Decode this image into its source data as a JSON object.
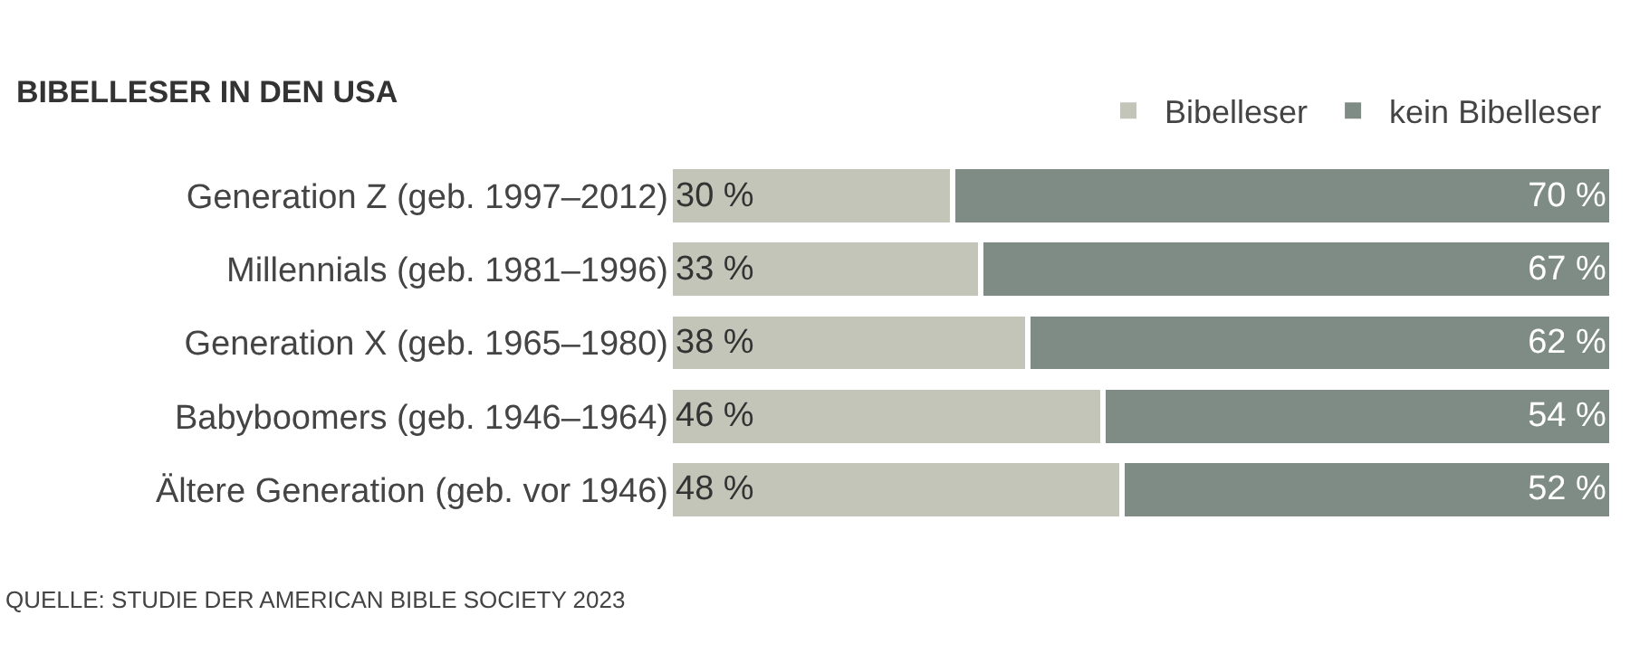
{
  "chart_data": {
    "type": "bar",
    "orientation": "horizontal",
    "stacked": true,
    "title": "BIBELLESER IN DEN USA",
    "categories": [
      "Generation Z (geb. 1997–2012)",
      "Millennials (geb. 1981–1996)",
      "Generation X (geb. 1965–1980)",
      "Babyboomers (geb. 1946–1964)",
      "Ältere Generation (geb. vor 1946)"
    ],
    "series": [
      {
        "name": "Bibelleser",
        "color": "#c3c5b8",
        "values": [
          30,
          33,
          38,
          46,
          48
        ],
        "value_labels": [
          "30 %",
          "33 %",
          "38 %",
          "46 %",
          "48 %"
        ]
      },
      {
        "name": "kein Bibelleser",
        "color": "#7e8c85",
        "values": [
          70,
          67,
          62,
          54,
          52
        ],
        "value_labels": [
          "70 %",
          "67 %",
          "62 %",
          "54 %",
          "52 %"
        ]
      }
    ],
    "xlim": [
      0,
      100
    ],
    "tick_labels": "y",
    "legend": "top right",
    "annotations": [
      "QUELLE: STUDIE DER AMERICAN BIBLE SOCIETY 2023"
    ]
  }
}
